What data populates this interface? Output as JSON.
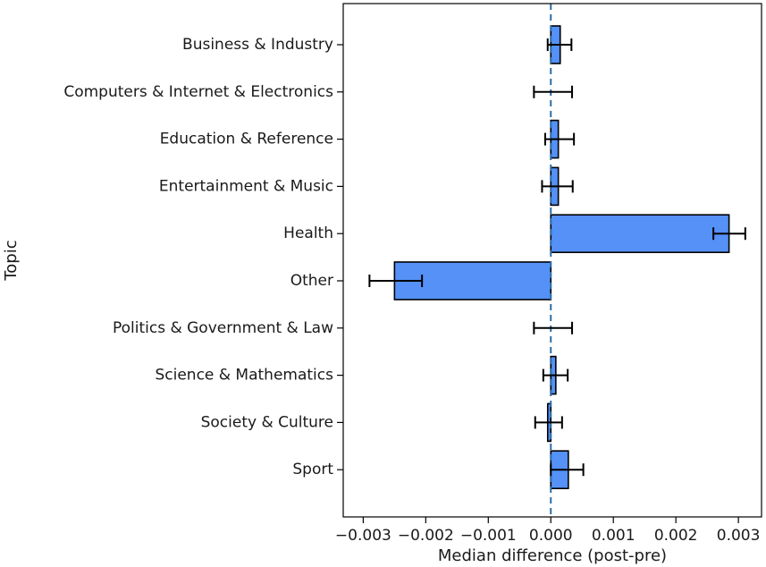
{
  "chart_data": {
    "type": "bar",
    "orientation": "horizontal",
    "xlabel": "Median difference (post-pre)",
    "ylabel": "Topic",
    "xlim": [
      -0.00332,
      0.00337
    ],
    "xticks": [
      -0.003,
      -0.002,
      -0.001,
      0.0,
      0.001,
      0.002,
      0.003
    ],
    "xtick_labels": [
      "−0.003",
      "−0.002",
      "−0.001",
      "0.000",
      "0.001",
      "0.002",
      "0.003"
    ],
    "reference_line": {
      "x": 0,
      "style": "dashed"
    },
    "grid": false,
    "bar_color": "#5591f7",
    "reference_line_color": "#2b6fa6",
    "categories": [
      "Business & Industry",
      "Computers & Internet & Electronics",
      "Education & Reference",
      "Entertainment & Music",
      "Health",
      "Other",
      "Politics & Government & Law",
      "Science & Mathematics",
      "Society & Culture",
      "Sport"
    ],
    "values": [
      0.00015,
      0.0,
      0.00012,
      0.00012,
      0.00285,
      -0.0025,
      0.0,
      8e-05,
      -5e-05,
      0.00028
    ],
    "ci_low": [
      -5e-05,
      -0.00027,
      -9e-05,
      -0.00014,
      0.0026,
      -0.0029,
      -0.00027,
      -0.00012,
      -0.00025,
      0.0
    ],
    "ci_high": [
      0.00033,
      0.00034,
      0.00037,
      0.00035,
      0.00311,
      -0.00206,
      0.00034,
      0.00027,
      0.00018,
      0.00052
    ]
  }
}
